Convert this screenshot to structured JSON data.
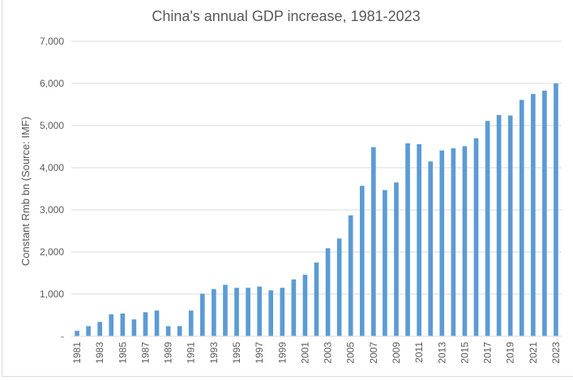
{
  "chart_data": {
    "type": "bar",
    "title": "China's annual GDP increase, 1981-2023",
    "xlabel": "",
    "ylabel": "Constant Rmb bn (Source: IMF)",
    "ylim": [
      0,
      7000
    ],
    "yticks": [
      0,
      1000,
      2000,
      3000,
      4000,
      5000,
      6000,
      7000
    ],
    "ytick_labels": [
      "-",
      "1,000",
      "2,000",
      "3,000",
      "4,000",
      "5,000",
      "6,000",
      "7,000"
    ],
    "grid": true,
    "legend": "none",
    "bar_color": "#5b9bd5",
    "categories": [
      "1981",
      "1982",
      "1983",
      "1984",
      "1985",
      "1986",
      "1987",
      "1988",
      "1989",
      "1990",
      "1991",
      "1992",
      "1993",
      "1994",
      "1995",
      "1996",
      "1997",
      "1998",
      "1999",
      "2000",
      "2001",
      "2002",
      "2003",
      "2004",
      "2005",
      "2006",
      "2007",
      "2008",
      "2009",
      "2010",
      "2011",
      "2012",
      "2013",
      "2014",
      "2015",
      "2016",
      "2017",
      "2018",
      "2019",
      "2020",
      "2021",
      "2022",
      "2023"
    ],
    "xtick_labels": [
      "1981",
      "1983",
      "1985",
      "1987",
      "1989",
      "1991",
      "1993",
      "1995",
      "1997",
      "1999",
      "2001",
      "2003",
      "2005",
      "2007",
      "2009",
      "2011",
      "2013",
      "2015",
      "2017",
      "2019",
      "2021",
      "2023"
    ],
    "series": [
      {
        "name": "GDP increase",
        "values": [
          130,
          240,
          340,
          520,
          540,
          400,
          570,
          610,
          240,
          240,
          610,
          1010,
          1120,
          1220,
          1150,
          1150,
          1180,
          1090,
          1150,
          1350,
          1460,
          1750,
          2090,
          2320,
          2870,
          3570,
          4490,
          3470,
          3650,
          4580,
          4560,
          4150,
          4410,
          4460,
          4510,
          4700,
          5110,
          5250,
          5240,
          5610,
          5750,
          5830,
          6000
        ]
      }
    ]
  }
}
